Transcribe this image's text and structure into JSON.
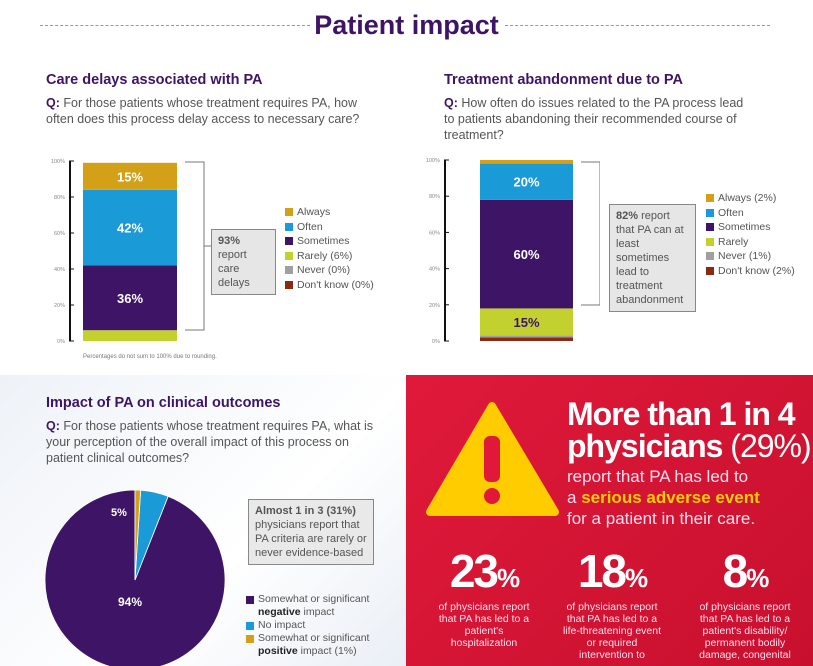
{
  "page_title": "Patient impact",
  "chart_data": [
    {
      "type": "bar",
      "stacked": true,
      "title": "Care delays associated with PA",
      "question_prefix": "Q:",
      "question": "For those patients whose treatment requires PA, how often does this process delay access to necessary care?",
      "ylim": [
        0,
        100
      ],
      "yticks": [
        "0%",
        "20%",
        "40%",
        "60%",
        "80%",
        "100%"
      ],
      "series": [
        {
          "name": "Don't know (0%)",
          "value": 0,
          "color": "#8b2a12"
        },
        {
          "name": "Never (0%)",
          "value": 0,
          "color": "#a0a0a0"
        },
        {
          "name": "Rarely (6%)",
          "value": 6,
          "color": "#c3d12e"
        },
        {
          "name": "Sometimes",
          "value": 36,
          "label": "36%",
          "color": "#3d1466"
        },
        {
          "name": "Often",
          "value": 42,
          "label": "42%",
          "color": "#1a9ad6"
        },
        {
          "name": "Always",
          "value": 15,
          "label": "15%",
          "color": "#d4a017"
        }
      ],
      "callout_bold": "93%",
      "callout_text": " report care delays",
      "footnote": "Percentages do not sum to 100% due to rounding."
    },
    {
      "type": "bar",
      "stacked": true,
      "title": "Treatment abandonment due to PA",
      "question_prefix": "Q:",
      "question": "How often do issues related to the PA process lead to patients abandoning their recommended course of treatment?",
      "ylim": [
        0,
        100
      ],
      "yticks": [
        "0%",
        "20%",
        "40%",
        "60%",
        "80%",
        "100%"
      ],
      "series": [
        {
          "name": "Don't know (2%)",
          "value": 2,
          "color": "#8b2a12"
        },
        {
          "name": "Never (1%)",
          "value": 1,
          "color": "#a0a0a0"
        },
        {
          "name": "Rarely",
          "value": 15,
          "label": "15%",
          "color": "#c3d12e"
        },
        {
          "name": "Sometimes",
          "value": 60,
          "label": "60%",
          "color": "#3d1466"
        },
        {
          "name": "Often",
          "value": 20,
          "label": "20%",
          "color": "#1a9ad6"
        },
        {
          "name": "Always (2%)",
          "value": 2,
          "color": "#d4a017"
        }
      ],
      "callout_bold": "82%",
      "callout_text": " report that PA can at least sometimes lead to treatment abandonment"
    },
    {
      "type": "pie",
      "title": "Impact of PA on clinical outcomes",
      "question_prefix": "Q:",
      "question": "For those patients whose treatment requires PA, what is your perception of the overall impact of this process on patient clinical outcomes?",
      "slices": [
        {
          "name": "Somewhat or significant negative impact",
          "value": 94,
          "label": "94%",
          "color": "#3d1466"
        },
        {
          "name": "No impact",
          "value": 5,
          "label": "5%",
          "color": "#1a9ad6"
        },
        {
          "name": "Somewhat or significant positive impact (1%)",
          "value": 1,
          "color": "#d4a017"
        }
      ],
      "legend": [
        {
          "pre": "Somewhat or significant ",
          "bold": "negative",
          "post": " impact"
        },
        {
          "pre": "No impact",
          "bold": "",
          "post": ""
        },
        {
          "pre": "Somewhat or significant ",
          "bold": "positive",
          "post": " impact (1%)"
        }
      ],
      "callout_bold": "Almost 1 in 3 (31%)",
      "callout_text": "physicians report that PA criteria are rarely or never evidence-based"
    }
  ],
  "alert": {
    "headline1": "More than 1 in 4",
    "headline2": "physicians",
    "headline_pct": "(29%)",
    "line1": "report that PA has led to",
    "line2_pre": "a ",
    "line2_bold": "serious adverse event",
    "line3": "for a patient in their care.",
    "icon": "warning-triangle-icon",
    "stats": [
      {
        "n": "23",
        "t": "of physicians report that PA has led to a patient's hospitalization"
      },
      {
        "n": "18",
        "t": "of physicians report that PA has led to a life-threatening event or required intervention to"
      },
      {
        "n": "8",
        "t": "of physicians report that PA has led to a patient's disability/ permanent bodily damage, congenital"
      }
    ]
  }
}
